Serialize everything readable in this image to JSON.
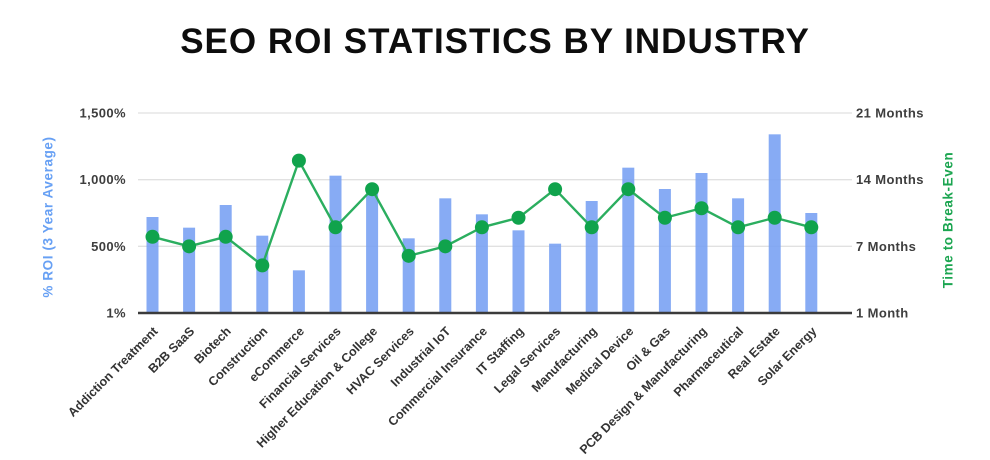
{
  "page": {
    "title": "SEO ROI STATISTICS BY INDUSTRY"
  },
  "chart_data": {
    "type": "bar+line combo",
    "title": "SEO ROI STATISTICS BY INDUSTRY",
    "categories": [
      "Addiction Treatment",
      "B2B SaaS",
      "Biotech",
      "Construction",
      "eCommerce",
      "Financial Services",
      "Higher Education & College",
      "HVAC Services",
      "Industrial IoT",
      "Commercial Insurance",
      "IT Staffing",
      "Legal Services",
      "Manufacturing",
      "Medical Device",
      "Oil & Gas",
      "PCB Design & Manufacturing",
      "Pharmaceutical",
      "Real Estate",
      "Solar Energy"
    ],
    "series": [
      {
        "name": "% ROI (3 Year Average)",
        "type": "bar",
        "axis": "left",
        "values": [
          720,
          640,
          810,
          580,
          320,
          1030,
          920,
          560,
          860,
          740,
          620,
          520,
          840,
          1090,
          930,
          1050,
          860,
          1340,
          750
        ]
      },
      {
        "name": "Time to Break-Even",
        "type": "line",
        "axis": "right",
        "unit": "months",
        "values": [
          8,
          7,
          8,
          5,
          16,
          9,
          13,
          6,
          7,
          9,
          10,
          13,
          9,
          13,
          10,
          11,
          9,
          10,
          9
        ]
      }
    ],
    "left_axis": {
      "label": "% ROI (3 Year Average)",
      "ticks": [
        "1,500%",
        "1,000%",
        "500%",
        "1%"
      ],
      "tick_values": [
        1500,
        1000,
        500,
        1
      ],
      "max": 1500
    },
    "right_axis": {
      "label": "Time to Break-Even",
      "ticks": [
        "21 Months",
        "14 Months",
        "7 Months",
        "1 Month"
      ],
      "tick_values": [
        21,
        14,
        7,
        1
      ],
      "max": 21
    },
    "grid": true,
    "legend": "none",
    "colors": {
      "bar": "#7AA2F3",
      "line": "#2BAE5F",
      "dot": "#10A34C",
      "left_axis_label": "#67A0F4",
      "right_axis_label": "#1BA550",
      "grid": "#E1E1E1",
      "baseline": "#3B3B3B",
      "tick_text": "#3E3E3E",
      "category_text": "#333333",
      "title": "#0D0D0D"
    }
  }
}
